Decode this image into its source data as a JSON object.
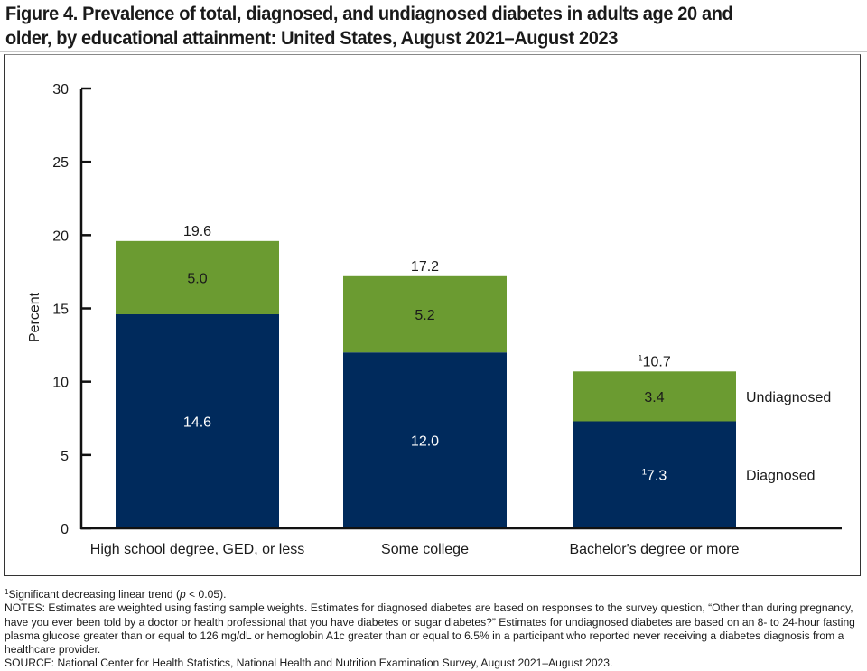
{
  "figure": {
    "title_line1": "Figure 4. Prevalence of total, diagnosed, and undiagnosed diabetes in adults age 20 and",
    "title_line2": "older, by educational attainment: United States, August 2021–August 2023"
  },
  "chart_data": {
    "type": "bar",
    "stacked": true,
    "title": "Prevalence of total, diagnosed, and undiagnosed diabetes in adults age 20 and older, by educational attainment: United States, August 2021–August 2023",
    "xlabel": "",
    "ylabel": "Percent",
    "ylim": [
      0,
      30
    ],
    "yticks": [
      0,
      5,
      10,
      15,
      20,
      25,
      30
    ],
    "grid": false,
    "categories": [
      "High school degree, GED, or less",
      "Some college",
      "Bachelor's degree or more"
    ],
    "series": [
      {
        "name": "Diagnosed",
        "color": "#002a5c",
        "label_color": "#ffffff",
        "values": [
          14.6,
          12.0,
          7.3
        ],
        "labels": [
          "14.6",
          "12.0",
          "7.3"
        ],
        "footnote_marks": [
          "",
          "",
          "1"
        ]
      },
      {
        "name": "Undiagnosed",
        "color": "#6b9b31",
        "label_color": "#1a1a1a",
        "values": [
          5.0,
          5.2,
          3.4
        ],
        "labels": [
          "5.0",
          "5.2",
          "3.4"
        ],
        "footnote_marks": [
          "",
          "",
          ""
        ]
      }
    ],
    "totals": {
      "values": [
        19.6,
        17.2,
        10.7
      ],
      "labels": [
        "19.6",
        "17.2",
        "10.7"
      ],
      "footnote_marks": [
        "",
        "",
        "1"
      ]
    },
    "legend": {
      "placement": "right of last bar",
      "entries": [
        "Undiagnosed",
        "Diagnosed"
      ]
    }
  },
  "notes": {
    "footnote_mark": "1",
    "footnote_text": "Significant decreasing linear trend (",
    "footnote_p": "p",
    "footnote_tail": " < 0.05).",
    "notes_text": "NOTES: Estimates are weighted using fasting sample weights. Estimates for diagnosed diabetes are based on responses to the survey question, “Other than during pregnancy, have you ever been told by a doctor or health professional that you have diabetes or sugar diabetes?” Estimates for undiagnosed diabetes are based on an 8- to 24-hour fasting plasma glucose greater than or equal to 126 mg/dL or hemoglobin A1c greater than or equal to 6.5% in a participant who reported never receiving a diabetes diagnosis from a healthcare provider.",
    "source_text": "SOURCE: National Center for Health Statistics, National Health and Nutrition Examination Survey, August 2021–August 2023."
  }
}
